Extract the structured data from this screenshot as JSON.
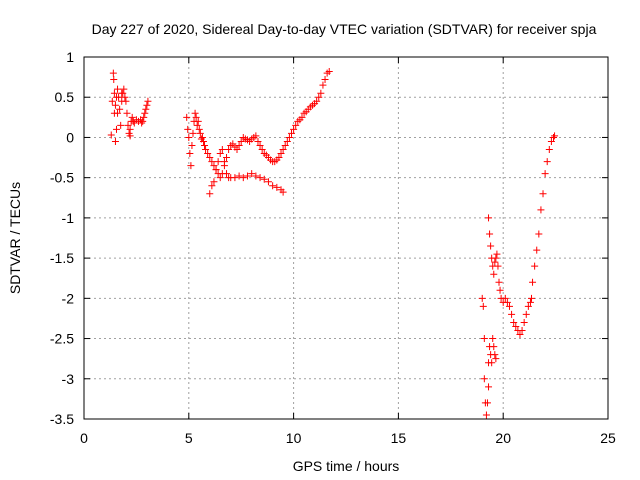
{
  "chart_data": {
    "type": "scatter",
    "title": "Day 227 of 2020, Sidereal Day-to-day VTEC variation (SDTVAR) for receiver spja",
    "xlabel": "GPS time / hours",
    "ylabel": "SDTVAR / TECUs",
    "xlim": [
      0,
      25
    ],
    "ylim": [
      -3.5,
      1
    ],
    "xticks": [
      "0",
      "5",
      "10",
      "15",
      "20",
      "25"
    ],
    "yticks": [
      "1",
      "0.5",
      "0",
      "-0.5",
      "-1",
      "-1.5",
      "-2",
      "-2.5",
      "-3",
      "-3.5"
    ],
    "grid": true,
    "marker": "+",
    "color": "#ff0000",
    "series": [
      {
        "points": [
          [
            1.3,
            0.03
          ],
          [
            1.35,
            0.45
          ],
          [
            1.4,
            0.8
          ],
          [
            1.42,
            0.72
          ],
          [
            1.45,
            0.55
          ],
          [
            1.5,
            0.4
          ],
          [
            1.55,
            0.1
          ],
          [
            1.6,
            0.3
          ],
          [
            1.65,
            0.5
          ],
          [
            1.7,
            0.35
          ],
          [
            1.75,
            0.15
          ],
          [
            1.8,
            0.45
          ],
          [
            1.85,
            0.55
          ],
          [
            1.9,
            0.6
          ],
          [
            1.95,
            0.5
          ],
          [
            2.0,
            0.45
          ],
          [
            2.05,
            0.3
          ],
          [
            2.1,
            0.15
          ],
          [
            2.15,
            0.05
          ],
          [
            2.2,
            0.1
          ],
          [
            2.25,
            0.2
          ],
          [
            2.3,
            0.25
          ],
          [
            2.35,
            0.2
          ],
          [
            2.4,
            0.18
          ],
          [
            2.5,
            0.22
          ],
          [
            2.6,
            0.2
          ],
          [
            2.7,
            0.22
          ],
          [
            2.75,
            0.18
          ],
          [
            2.8,
            0.2
          ],
          [
            2.85,
            0.25
          ],
          [
            2.9,
            0.3
          ],
          [
            2.95,
            0.35
          ],
          [
            3.0,
            0.4
          ],
          [
            3.05,
            0.45
          ],
          [
            1.5,
            -0.05
          ],
          [
            1.45,
            0.3
          ],
          [
            1.55,
            0.5
          ],
          [
            1.8,
            0.55
          ],
          [
            2.2,
            0.02
          ],
          [
            1.6,
            0.6
          ],
          [
            4.9,
            0.25
          ],
          [
            4.95,
            0.1
          ],
          [
            5.0,
            0.0
          ],
          [
            5.05,
            -0.2
          ],
          [
            5.1,
            -0.35
          ],
          [
            5.15,
            -0.1
          ],
          [
            5.2,
            0.05
          ],
          [
            5.25,
            0.2
          ],
          [
            5.3,
            0.3
          ],
          [
            5.35,
            0.25
          ],
          [
            5.4,
            0.15
          ],
          [
            5.45,
            0.2
          ],
          [
            5.5,
            0.1
          ],
          [
            5.55,
            0.05
          ],
          [
            5.6,
            -0.02
          ],
          [
            5.65,
            0.0
          ],
          [
            5.7,
            -0.05
          ],
          [
            5.75,
            -0.1
          ],
          [
            5.8,
            -0.15
          ],
          [
            5.9,
            -0.2
          ],
          [
            6.0,
            -0.25
          ],
          [
            6.1,
            -0.3
          ],
          [
            6.2,
            -0.35
          ],
          [
            6.3,
            -0.4
          ],
          [
            6.4,
            -0.45
          ],
          [
            6.5,
            -0.5
          ],
          [
            6.6,
            -0.45
          ],
          [
            6.7,
            -0.35
          ],
          [
            6.8,
            -0.25
          ],
          [
            6.9,
            -0.15
          ],
          [
            7.0,
            -0.1
          ],
          [
            7.1,
            -0.08
          ],
          [
            7.2,
            -0.12
          ],
          [
            7.3,
            -0.15
          ],
          [
            7.4,
            -0.1
          ],
          [
            7.5,
            -0.05
          ],
          [
            7.6,
            0.0
          ],
          [
            7.7,
            -0.02
          ],
          [
            7.8,
            -0.03
          ],
          [
            7.9,
            -0.05
          ],
          [
            8.0,
            -0.02
          ],
          [
            8.1,
            0.0
          ],
          [
            8.2,
            0.02
          ],
          [
            8.3,
            -0.05
          ],
          [
            8.4,
            -0.1
          ],
          [
            8.5,
            -0.15
          ],
          [
            8.6,
            -0.2
          ],
          [
            8.7,
            -0.22
          ],
          [
            8.8,
            -0.25
          ],
          [
            8.9,
            -0.28
          ],
          [
            9.0,
            -0.3
          ],
          [
            9.1,
            -0.3
          ],
          [
            9.2,
            -0.28
          ],
          [
            9.3,
            -0.25
          ],
          [
            9.4,
            -0.2
          ],
          [
            9.5,
            -0.15
          ],
          [
            9.6,
            -0.1
          ],
          [
            9.7,
            -0.05
          ],
          [
            9.8,
            0.0
          ],
          [
            9.9,
            0.05
          ],
          [
            10.0,
            0.1
          ],
          [
            10.1,
            0.15
          ],
          [
            10.2,
            0.2
          ],
          [
            10.3,
            0.22
          ],
          [
            10.4,
            0.25
          ],
          [
            10.5,
            0.3
          ],
          [
            10.6,
            0.32
          ],
          [
            10.7,
            0.35
          ],
          [
            10.8,
            0.38
          ],
          [
            10.9,
            0.4
          ],
          [
            11.0,
            0.42
          ],
          [
            11.1,
            0.45
          ],
          [
            11.2,
            0.5
          ],
          [
            11.3,
            0.55
          ],
          [
            11.4,
            0.65
          ],
          [
            11.5,
            0.72
          ],
          [
            11.6,
            0.8
          ],
          [
            11.7,
            0.82
          ],
          [
            6.0,
            -0.7
          ],
          [
            6.1,
            -0.6
          ],
          [
            6.2,
            -0.55
          ],
          [
            6.3,
            -0.4
          ],
          [
            6.4,
            -0.3
          ],
          [
            6.5,
            -0.2
          ],
          [
            6.6,
            -0.15
          ],
          [
            6.7,
            -0.3
          ],
          [
            6.8,
            -0.45
          ],
          [
            6.9,
            -0.5
          ],
          [
            7.0,
            -0.5
          ],
          [
            7.2,
            -0.5
          ],
          [
            7.4,
            -0.48
          ],
          [
            7.6,
            -0.5
          ],
          [
            7.8,
            -0.48
          ],
          [
            8.0,
            -0.45
          ],
          [
            8.2,
            -0.48
          ],
          [
            8.4,
            -0.5
          ],
          [
            8.6,
            -0.52
          ],
          [
            8.8,
            -0.55
          ],
          [
            9.0,
            -0.6
          ],
          [
            9.2,
            -0.62
          ],
          [
            9.4,
            -0.65
          ],
          [
            9.5,
            -0.68
          ],
          [
            19.0,
            -2.0
          ],
          [
            19.05,
            -2.1
          ],
          [
            19.1,
            -2.5
          ],
          [
            19.1,
            -3.0
          ],
          [
            19.15,
            -3.3
          ],
          [
            19.2,
            -3.45
          ],
          [
            19.25,
            -3.3
          ],
          [
            19.3,
            -3.1
          ],
          [
            19.3,
            -2.8
          ],
          [
            19.35,
            -2.6
          ],
          [
            19.4,
            -2.7
          ],
          [
            19.45,
            -2.8
          ],
          [
            19.5,
            -2.5
          ],
          [
            19.55,
            -2.6
          ],
          [
            19.6,
            -2.7
          ],
          [
            19.65,
            -2.75
          ],
          [
            19.3,
            -1.0
          ],
          [
            19.35,
            -1.2
          ],
          [
            19.4,
            -1.35
          ],
          [
            19.45,
            -1.5
          ],
          [
            19.5,
            -1.6
          ],
          [
            19.55,
            -1.7
          ],
          [
            19.6,
            -1.55
          ],
          [
            19.65,
            -1.5
          ],
          [
            19.7,
            -1.45
          ],
          [
            19.75,
            -1.6
          ],
          [
            19.8,
            -1.8
          ],
          [
            19.85,
            -1.9
          ],
          [
            19.9,
            -2.0
          ],
          [
            20.0,
            -2.05
          ],
          [
            20.1,
            -2.0
          ],
          [
            20.2,
            -2.05
          ],
          [
            20.3,
            -2.1
          ],
          [
            20.4,
            -2.2
          ],
          [
            20.5,
            -2.3
          ],
          [
            20.6,
            -2.35
          ],
          [
            20.7,
            -2.4
          ],
          [
            20.8,
            -2.45
          ],
          [
            20.9,
            -2.4
          ],
          [
            21.0,
            -2.3
          ],
          [
            21.1,
            -2.2
          ],
          [
            21.2,
            -2.1
          ],
          [
            21.3,
            -2.05
          ],
          [
            21.35,
            -2.0
          ],
          [
            21.4,
            -1.8
          ],
          [
            21.5,
            -1.6
          ],
          [
            21.6,
            -1.4
          ],
          [
            21.7,
            -1.2
          ],
          [
            21.8,
            -0.9
          ],
          [
            21.9,
            -0.7
          ],
          [
            22.0,
            -0.45
          ],
          [
            22.1,
            -0.3
          ],
          [
            22.2,
            -0.15
          ],
          [
            22.3,
            -0.05
          ],
          [
            22.4,
            0.0
          ],
          [
            22.45,
            0.02
          ]
        ]
      }
    ]
  }
}
